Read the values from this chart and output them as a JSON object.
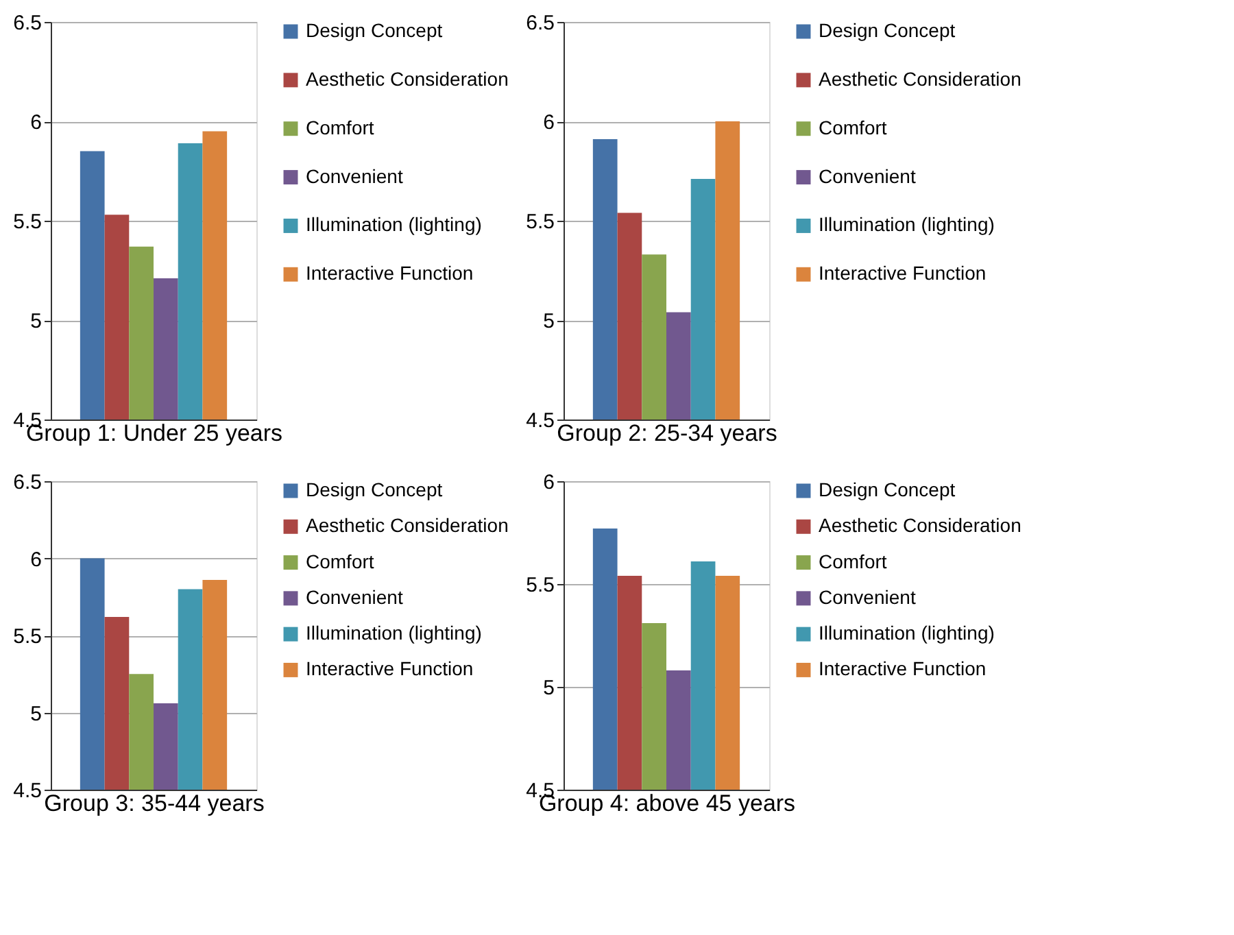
{
  "chart_data": [
    {
      "type": "bar",
      "xlabel": "Group 1: Under 25 years",
      "categories": [
        null
      ],
      "ylim": [
        4.5,
        6.5
      ],
      "yticks": [
        4.5,
        5,
        5.5,
        6,
        6.5
      ],
      "grid": "y",
      "legend": "right",
      "tick_labels": "y",
      "series": [
        {
          "name": "Design Concept",
          "color": "#4572a7",
          "values": [
            5.85
          ]
        },
        {
          "name": "Aesthetic Consideration",
          "color": "#aa4643",
          "values": [
            5.53
          ]
        },
        {
          "name": "Comfort",
          "color": "#89a54e",
          "values": [
            5.37
          ]
        },
        {
          "name": "Convenient",
          "color": "#71588f",
          "values": [
            5.21
          ]
        },
        {
          "name": "Illumination (lighting)",
          "color": "#4198af",
          "values": [
            5.89
          ]
        },
        {
          "name": "Interactive Function",
          "color": "#db843d",
          "values": [
            5.95
          ]
        }
      ]
    },
    {
      "type": "bar",
      "xlabel": "Group 2: 25-34 years",
      "categories": [
        null
      ],
      "ylim": [
        4.5,
        6.5
      ],
      "yticks": [
        4.5,
        5,
        5.5,
        6,
        6.5
      ],
      "grid": "y",
      "legend": "right",
      "tick_labels": "y",
      "series": [
        {
          "name": "Design Concept",
          "color": "#4572a7",
          "values": [
            5.91
          ]
        },
        {
          "name": "Aesthetic Consideration",
          "color": "#aa4643",
          "values": [
            5.54
          ]
        },
        {
          "name": "Comfort",
          "color": "#89a54e",
          "values": [
            5.33
          ]
        },
        {
          "name": "Convenient",
          "color": "#71588f",
          "values": [
            5.04
          ]
        },
        {
          "name": "Illumination (lighting)",
          "color": "#4198af",
          "values": [
            5.71
          ]
        },
        {
          "name": "Interactive Function",
          "color": "#db843d",
          "values": [
            6.0
          ]
        }
      ]
    },
    {
      "type": "bar",
      "xlabel": "Group 3: 35-44 years",
      "categories": [
        null
      ],
      "ylim": [
        4.5,
        6.5
      ],
      "yticks": [
        4.5,
        5,
        5.5,
        6,
        6.5
      ],
      "grid": "y",
      "legend": "right",
      "tick_labels": "y",
      "series": [
        {
          "name": "Design Concept",
          "color": "#4572a7",
          "values": [
            6.0
          ]
        },
        {
          "name": "Aesthetic Consideration",
          "color": "#aa4643",
          "values": [
            5.62
          ]
        },
        {
          "name": "Comfort",
          "color": "#89a54e",
          "values": [
            5.25
          ]
        },
        {
          "name": "Convenient",
          "color": "#71588f",
          "values": [
            5.06
          ]
        },
        {
          "name": "Illumination (lighting)",
          "color": "#4198af",
          "values": [
            5.8
          ]
        },
        {
          "name": "Interactive Function",
          "color": "#db843d",
          "values": [
            5.86
          ]
        }
      ]
    },
    {
      "type": "bar",
      "xlabel": "Group 4: above 45 years",
      "categories": [
        null
      ],
      "ylim": [
        4.5,
        6
      ],
      "yticks": [
        4.5,
        5,
        5.5,
        6
      ],
      "grid": "y",
      "legend": "right",
      "tick_labels": "y",
      "series": [
        {
          "name": "Design Concept",
          "color": "#4572a7",
          "values": [
            5.77
          ]
        },
        {
          "name": "Aesthetic Consideration",
          "color": "#aa4643",
          "values": [
            5.54
          ]
        },
        {
          "name": "Comfort",
          "color": "#89a54e",
          "values": [
            5.31
          ]
        },
        {
          "name": "Convenient",
          "color": "#71588f",
          "values": [
            5.08
          ]
        },
        {
          "name": "Illumination (lighting)",
          "color": "#4198af",
          "values": [
            5.61
          ]
        },
        {
          "name": "Interactive Function",
          "color": "#db843d",
          "values": [
            5.54
          ]
        }
      ]
    }
  ]
}
